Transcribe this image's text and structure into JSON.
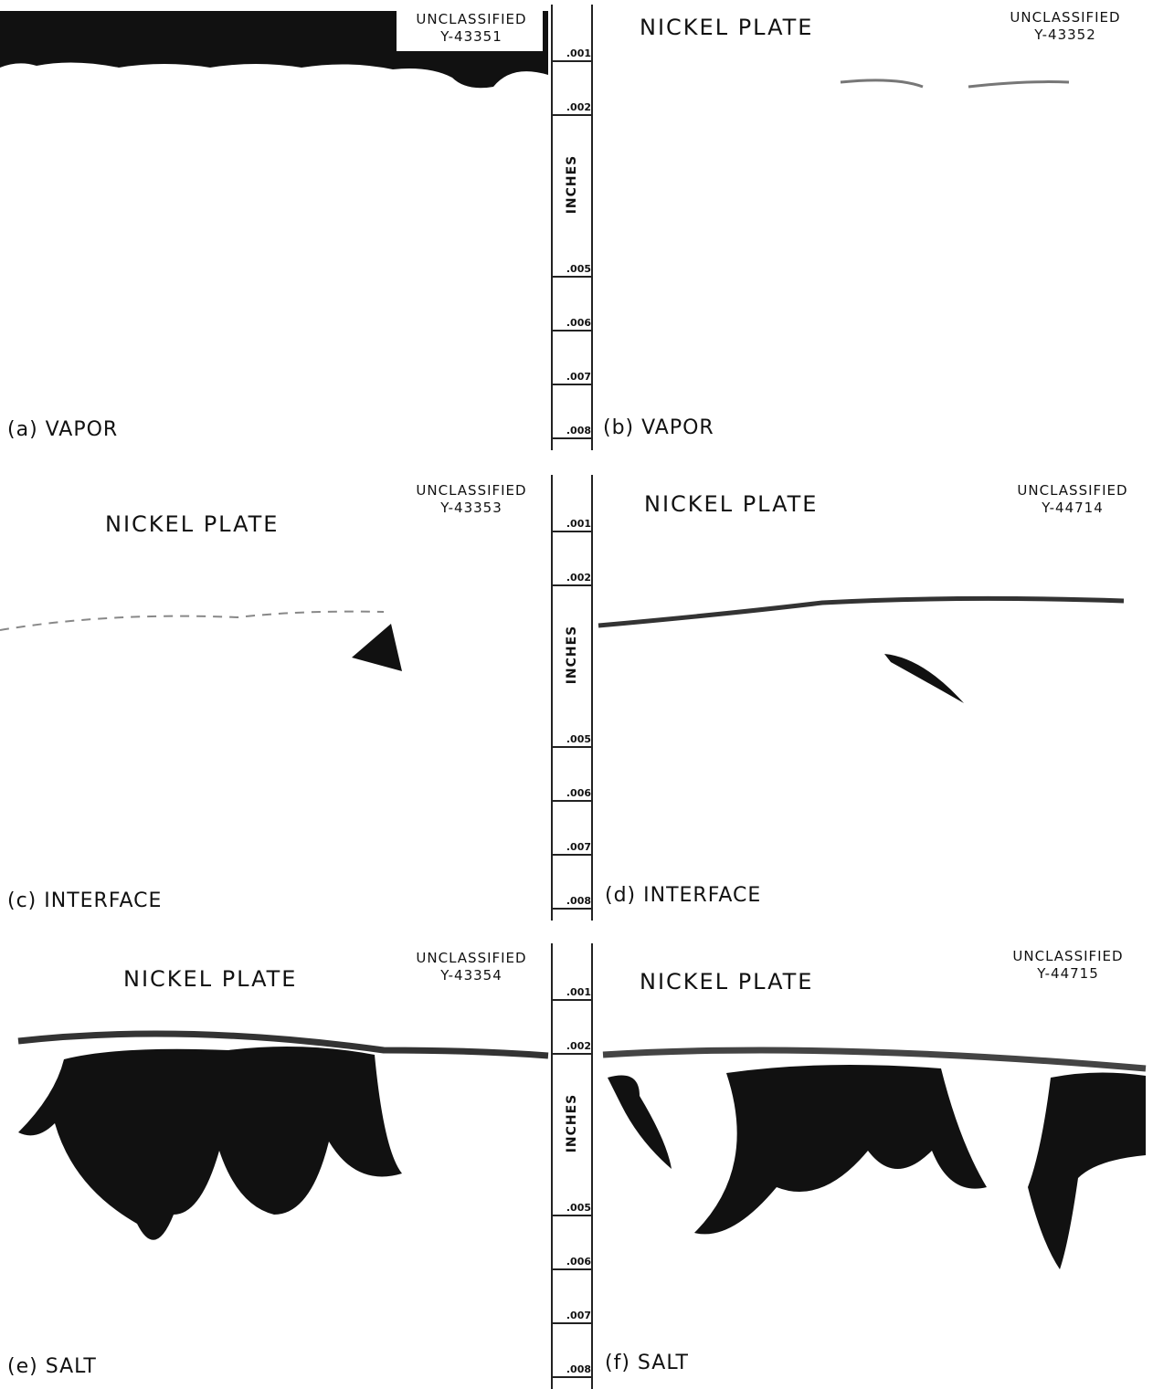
{
  "panels": [
    {
      "caption": "(a) VAPOR",
      "classification": "UNCLASSIFIED",
      "number": "Y-43351"
    },
    {
      "caption": "(b) VAPOR",
      "title": "NICKEL PLATE",
      "classification": "UNCLASSIFIED",
      "number": "Y-43352"
    },
    {
      "caption": "(c) INTERFACE",
      "title": "NICKEL PLATE",
      "classification": "UNCLASSIFIED",
      "number": "Y-43353"
    },
    {
      "caption": "(d) INTERFACE",
      "title": "NICKEL PLATE",
      "classification": "UNCLASSIFIED",
      "number": "Y-44714"
    },
    {
      "caption": "(e) SALT",
      "title": "NICKEL PLATE",
      "classification": "UNCLASSIFIED",
      "number": "Y-43354"
    },
    {
      "caption": "(f) SALT",
      "title": "NICKEL PLATE",
      "classification": "UNCLASSIFIED",
      "number": "Y-44715"
    }
  ],
  "scales": [
    {
      "ticks": [
        ".001",
        ".002",
        "INCHES",
        ".005",
        ".006",
        ".007",
        ".008"
      ]
    },
    {
      "ticks": [
        ".001",
        ".002",
        "INCHES",
        ".005",
        ".006",
        ".007",
        ".008"
      ]
    },
    {
      "ticks": [
        ".001",
        ".002",
        "INCHES",
        ".005",
        ".006",
        ".007",
        ".008"
      ]
    }
  ]
}
